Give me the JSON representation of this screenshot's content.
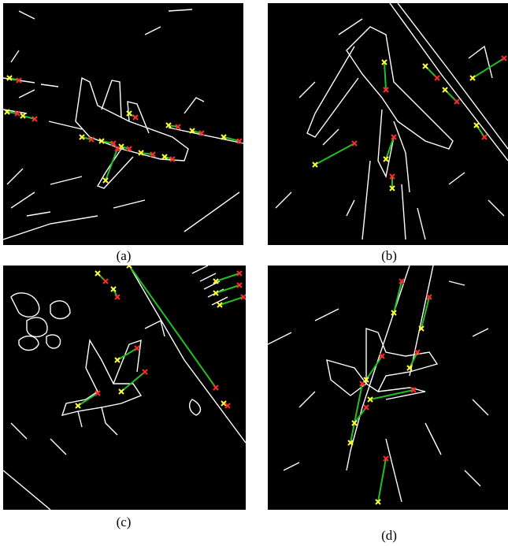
{
  "figure": {
    "panels": [
      {
        "id": "a",
        "caption": "(a)"
      },
      {
        "id": "b",
        "caption": "(b)"
      },
      {
        "id": "c",
        "caption": "(c)"
      },
      {
        "id": "d",
        "caption": "(d)"
      }
    ]
  },
  "colors": {
    "background": "#000000",
    "edge": "#ffffff",
    "line": "#22c022",
    "start_marker": "#ffff33",
    "end_marker": "#ff2a2a"
  }
}
